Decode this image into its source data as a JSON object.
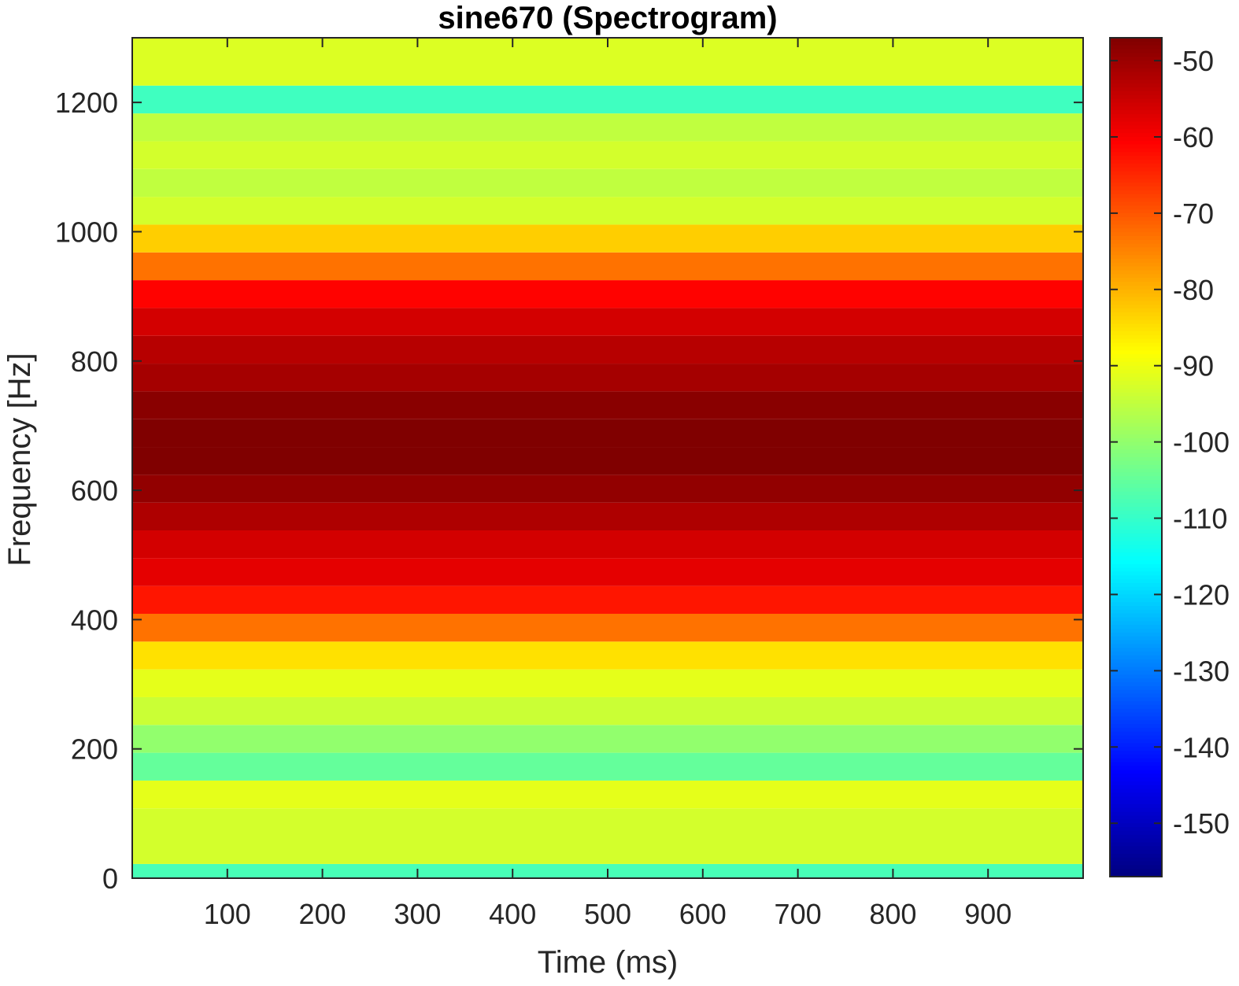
{
  "chart_data": {
    "type": "heatmap",
    "title": "sine670 (Spectrogram)",
    "xlabel": "Time (ms)",
    "ylabel": "Frequency [Hz]",
    "xlim": [
      0,
      1000
    ],
    "ylim": [
      0,
      1300
    ],
    "x_ticks": [
      100,
      200,
      300,
      400,
      500,
      600,
      700,
      800,
      900
    ],
    "y_ticks": [
      0,
      200,
      400,
      600,
      800,
      1000,
      1200
    ],
    "colorbar": {
      "colormap": "jet",
      "clim": [
        -157,
        -47
      ],
      "ticks": [
        -50,
        -60,
        -70,
        -80,
        -90,
        -100,
        -110,
        -120,
        -130,
        -140,
        -150
      ]
    },
    "frequency_bands": [
      {
        "f_low": 0,
        "f_high": 22,
        "power_db": -108
      },
      {
        "f_low": 22,
        "f_high": 108,
        "power_db": -93
      },
      {
        "f_low": 108,
        "f_high": 151,
        "power_db": -91
      },
      {
        "f_low": 151,
        "f_high": 194,
        "power_db": -105
      },
      {
        "f_low": 194,
        "f_high": 237,
        "power_db": -100
      },
      {
        "f_low": 237,
        "f_high": 280,
        "power_db": -94
      },
      {
        "f_low": 280,
        "f_high": 323,
        "power_db": -91
      },
      {
        "f_low": 323,
        "f_high": 366,
        "power_db": -85
      },
      {
        "f_low": 366,
        "f_high": 409,
        "power_db": -73
      },
      {
        "f_low": 409,
        "f_high": 452,
        "power_db": -63
      },
      {
        "f_low": 452,
        "f_high": 495,
        "power_db": -58
      },
      {
        "f_low": 495,
        "f_high": 538,
        "power_db": -56
      },
      {
        "f_low": 538,
        "f_high": 581,
        "power_db": -52
      },
      {
        "f_low": 581,
        "f_high": 624,
        "power_db": -49
      },
      {
        "f_low": 624,
        "f_high": 667,
        "power_db": -47
      },
      {
        "f_low": 667,
        "f_high": 710,
        "power_db": -47
      },
      {
        "f_low": 710,
        "f_high": 753,
        "power_db": -48
      },
      {
        "f_low": 753,
        "f_high": 796,
        "power_db": -51
      },
      {
        "f_low": 796,
        "f_high": 839,
        "power_db": -53
      },
      {
        "f_low": 839,
        "f_high": 882,
        "power_db": -56
      },
      {
        "f_low": 882,
        "f_high": 925,
        "power_db": -61
      },
      {
        "f_low": 925,
        "f_high": 968,
        "power_db": -73
      },
      {
        "f_low": 968,
        "f_high": 1011,
        "power_db": -83
      },
      {
        "f_low": 1011,
        "f_high": 1054,
        "power_db": -93
      },
      {
        "f_low": 1054,
        "f_high": 1097,
        "power_db": -95
      },
      {
        "f_low": 1097,
        "f_high": 1140,
        "power_db": -93
      },
      {
        "f_low": 1140,
        "f_high": 1183,
        "power_db": -95
      },
      {
        "f_low": 1183,
        "f_high": 1226,
        "power_db": -109
      },
      {
        "f_low": 1226,
        "f_high": 1300,
        "power_db": -92
      }
    ]
  }
}
